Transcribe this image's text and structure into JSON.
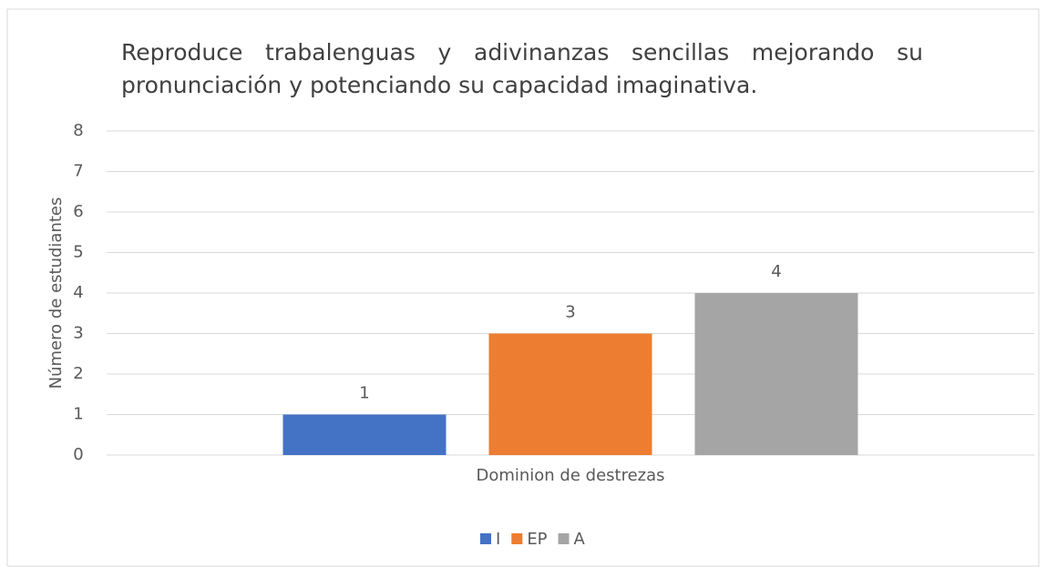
{
  "chart_data": {
    "type": "bar",
    "title": "Reproduce trabalenguas y adivinanzas sencillas mejorando su pronunciación y potenciando su capacidad imaginativa.",
    "categories": [
      "Dominion de destrezas"
    ],
    "y_label": "Número de estudiantes",
    "series": [
      {
        "name": "I",
        "color": "#4472c4",
        "values": [
          1
        ]
      },
      {
        "name": "EP",
        "color": "#ed7d31",
        "values": [
          3
        ]
      },
      {
        "name": "A",
        "color": "#a5a5a5",
        "values": [
          4
        ]
      }
    ],
    "ylim": [
      0,
      8
    ],
    "yticks": [
      0,
      1,
      2,
      3,
      4,
      5,
      6,
      7,
      8
    ],
    "grid": true,
    "legend": "bottom"
  }
}
